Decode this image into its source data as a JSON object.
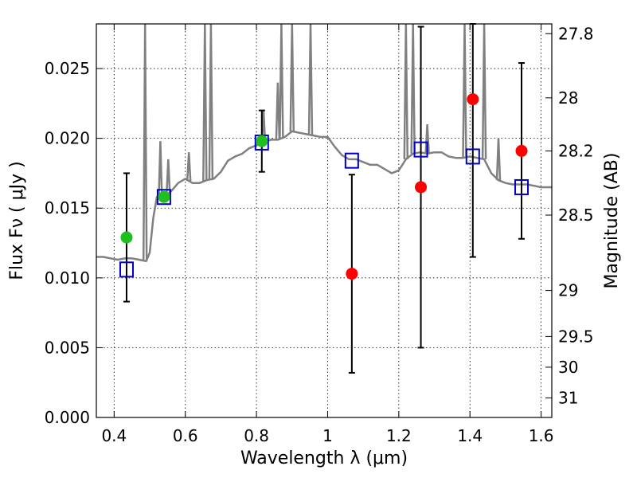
{
  "chart_data": {
    "type": "scatter",
    "xlabel": "Wavelength  λ (μm)",
    "ylabel": "Flux  Fν  ( μJy )",
    "ylabel_right": "Magnitude (AB)",
    "xlim": [
      0.35,
      1.63
    ],
    "ylim": [
      0.0,
      0.0282
    ],
    "grid": true,
    "x_ticks": [
      0.4,
      0.6,
      0.8,
      1.0,
      1.2,
      1.4,
      1.6
    ],
    "x_tick_labels": [
      "0.4",
      "0.6",
      "0.8",
      "1",
      "1.2",
      "1.4",
      "1.6"
    ],
    "y_ticks": [
      0.0,
      0.005,
      0.01,
      0.015,
      0.02,
      0.025
    ],
    "y_tick_labels": [
      "0.000",
      "0.005",
      "0.010",
      "0.015",
      "0.020",
      "0.025"
    ],
    "right_ticks": [
      {
        "label": "27.8",
        "flux": 0.0275
      },
      {
        "label": "28",
        "flux": 0.0229
      },
      {
        "label": "28.2",
        "flux": 0.0191
      },
      {
        "label": "28.5",
        "flux": 0.0145
      },
      {
        "label": "29",
        "flux": 0.0091
      },
      {
        "label": "29.5",
        "flux": 0.0058
      },
      {
        "label": "30",
        "flux": 0.0036
      },
      {
        "label": "31",
        "flux": 0.0014
      }
    ],
    "series": [
      {
        "marker": "circle-green",
        "color": "#1fbf1f",
        "x": [
          0.435,
          0.54,
          0.815
        ],
        "y": [
          0.0129,
          0.0158,
          0.0198
        ],
        "yerr": [
          0.0046,
          0.0003,
          0.0022
        ]
      },
      {
        "marker": "circle-red",
        "color": "#ff0000",
        "x": [
          1.068,
          1.262,
          1.408,
          1.545
        ],
        "y": [
          0.0103,
          0.0165,
          0.0228,
          0.0191
        ],
        "yerr": [
          0.0071,
          0.0115,
          0.0113,
          0.0063
        ]
      },
      {
        "marker": "square-open",
        "color": "#0000cc",
        "x": [
          0.435,
          0.54,
          0.815,
          1.068,
          1.262,
          1.408,
          1.545
        ],
        "y": [
          0.0106,
          0.0158,
          0.0197,
          0.0184,
          0.0192,
          0.0187,
          0.0165
        ]
      },
      {
        "marker": "line",
        "color": "#808080",
        "x": [
          0.35,
          0.37,
          0.39,
          0.41,
          0.43,
          0.45,
          0.47,
          0.49,
          0.5,
          0.51,
          0.52,
          0.53,
          0.54,
          0.56,
          0.58,
          0.6,
          0.62,
          0.64,
          0.66,
          0.68,
          0.7,
          0.72,
          0.74,
          0.76,
          0.78,
          0.8,
          0.82,
          0.84,
          0.86,
          0.88,
          0.9,
          0.92,
          0.94,
          0.96,
          0.98,
          1.0,
          1.02,
          1.04,
          1.06,
          1.08,
          1.1,
          1.12,
          1.14,
          1.16,
          1.18,
          1.2,
          1.22,
          1.24,
          1.26,
          1.28,
          1.3,
          1.32,
          1.34,
          1.36,
          1.38,
          1.4,
          1.42,
          1.44,
          1.46,
          1.48,
          1.5,
          1.52,
          1.54,
          1.56,
          1.58,
          1.6,
          1.63
        ],
        "y": [
          0.0115,
          0.0115,
          0.0114,
          0.0113,
          0.0114,
          0.0114,
          0.0113,
          0.0112,
          0.0118,
          0.0143,
          0.0158,
          0.0157,
          0.0158,
          0.0162,
          0.0168,
          0.0171,
          0.0168,
          0.0168,
          0.017,
          0.0171,
          0.0176,
          0.0184,
          0.0187,
          0.0189,
          0.0193,
          0.0195,
          0.0197,
          0.0199,
          0.0199,
          0.0201,
          0.0205,
          0.0204,
          0.0203,
          0.0202,
          0.0201,
          0.0201,
          0.0194,
          0.0188,
          0.0185,
          0.0185,
          0.0183,
          0.0181,
          0.0181,
          0.0178,
          0.0175,
          0.0177,
          0.0185,
          0.0189,
          0.019,
          0.0189,
          0.019,
          0.019,
          0.0187,
          0.0186,
          0.0186,
          0.0187,
          0.0186,
          0.0185,
          0.0175,
          0.017,
          0.0168,
          0.0167,
          0.0167,
          0.0167,
          0.0166,
          0.0165,
          0.0165
        ]
      }
    ],
    "emission_spikes": [
      {
        "x": 0.487,
        "y": 0.0282
      },
      {
        "x": 0.53,
        "y": 0.0198
      },
      {
        "x": 0.552,
        "y": 0.0185
      },
      {
        "x": 0.61,
        "y": 0.019
      },
      {
        "x": 0.655,
        "y": 0.0282
      },
      {
        "x": 0.672,
        "y": 0.0282
      },
      {
        "x": 0.82,
        "y": 0.022
      },
      {
        "x": 0.86,
        "y": 0.024
      },
      {
        "x": 0.87,
        "y": 0.0282
      },
      {
        "x": 0.9,
        "y": 0.0282
      },
      {
        "x": 0.952,
        "y": 0.0282
      },
      {
        "x": 1.22,
        "y": 0.0282
      },
      {
        "x": 1.24,
        "y": 0.0282
      },
      {
        "x": 1.28,
        "y": 0.021
      },
      {
        "x": 1.385,
        "y": 0.0282
      },
      {
        "x": 1.44,
        "y": 0.0282
      },
      {
        "x": 1.48,
        "y": 0.02
      }
    ]
  }
}
